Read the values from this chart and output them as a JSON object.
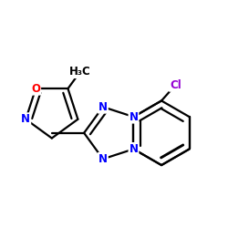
{
  "bg_color": "#ffffff",
  "atom_colors": {
    "N": "#0000ff",
    "O": "#ff0000",
    "Cl": "#9400d3",
    "C": "#000000"
  },
  "bond_color": "#000000",
  "bond_width": 1.6,
  "dbo": 0.055,
  "figsize": [
    2.5,
    2.5
  ],
  "dpi": 100
}
